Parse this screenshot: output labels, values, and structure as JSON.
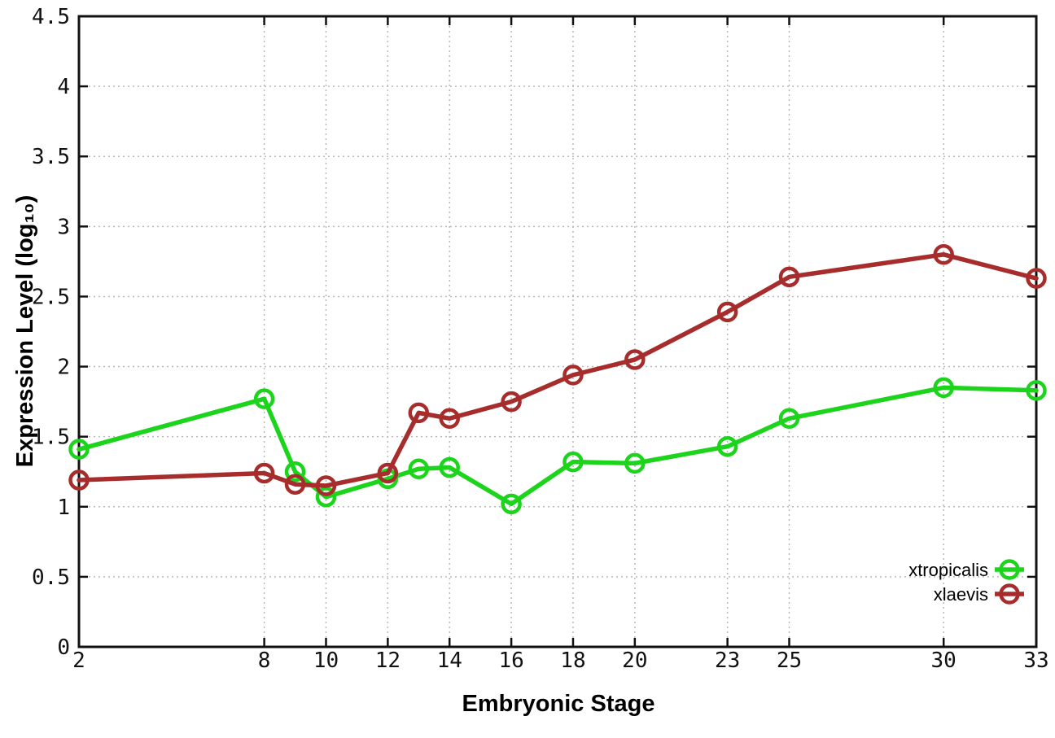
{
  "chart_data": {
    "type": "line",
    "xlabel": "Embryonic Stage",
    "ylabel": "Expression Level (log₁₀)",
    "xlim": [
      2,
      33
    ],
    "ylim": [
      0,
      4.5
    ],
    "x_tick_values": [
      2,
      8,
      10,
      12,
      14,
      16,
      18,
      20,
      23,
      25,
      30,
      33
    ],
    "x_ticks": [
      "2",
      "8",
      "10",
      "12",
      "14",
      "16",
      "18",
      "20",
      "23",
      "25",
      "30",
      "33"
    ],
    "y_tick_values": [
      0,
      0.5,
      1,
      1.5,
      2,
      2.5,
      3,
      3.5,
      4,
      4.5
    ],
    "y_ticks": [
      "0",
      "0.5",
      "1",
      "1.5",
      "2",
      "2.5",
      "3",
      "3.5",
      "4",
      "4.5"
    ],
    "grid": true,
    "legend_position": "bottom-right",
    "x": [
      2,
      8,
      9,
      10,
      12,
      13,
      14,
      16,
      18,
      20,
      23,
      25,
      30,
      33
    ],
    "series": [
      {
        "name": "xtropicalis",
        "color": "#1bd41b",
        "marker": "open-circle",
        "values": [
          1.41,
          1.77,
          1.25,
          1.07,
          1.2,
          1.27,
          1.28,
          1.02,
          1.32,
          1.31,
          1.43,
          1.63,
          1.85,
          1.83
        ]
      },
      {
        "name": "xlaevis",
        "color": "#a72c2c",
        "marker": "open-circle",
        "values": [
          1.19,
          1.24,
          1.16,
          1.15,
          1.24,
          1.67,
          1.63,
          1.75,
          1.94,
          2.05,
          2.39,
          2.64,
          2.8,
          2.63
        ]
      }
    ],
    "colors": {
      "grid": "#b9b9b9",
      "axis": "#111111",
      "background": "#ffffff"
    }
  }
}
